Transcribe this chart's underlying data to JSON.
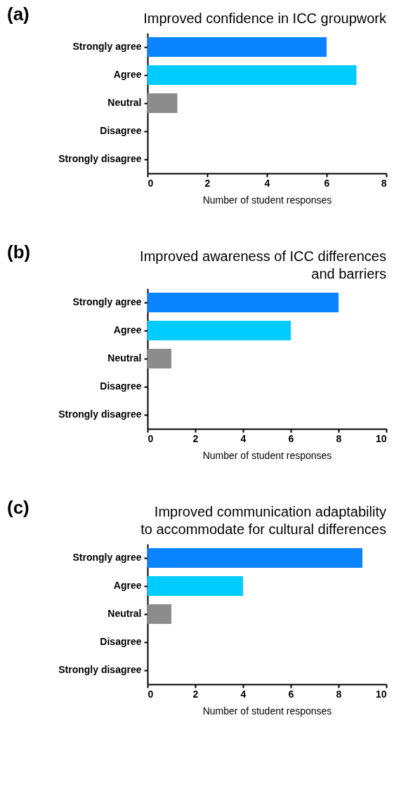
{
  "chart_data": [
    {
      "type": "bar",
      "orientation": "horizontal",
      "title": "Improved confidence in ICC groupwork",
      "annotations": [
        "(a)"
      ],
      "xlabel": "Number of student responses",
      "categories": [
        "Strongly agree",
        "Agree",
        "Neutral",
        "Disagree",
        "Strongly disagree"
      ],
      "values": [
        6,
        7,
        1,
        0,
        0
      ],
      "colors": [
        "#0a84ff",
        "#00ccff",
        "#8c8c8c",
        "#8c8c8c",
        "#8c8c8c"
      ],
      "xlim": [
        0,
        8
      ],
      "xticks": [
        0,
        2,
        4,
        6,
        8
      ],
      "grid": false
    },
    {
      "type": "bar",
      "orientation": "horizontal",
      "title": "Improved awareness of ICC differences\nand barriers",
      "annotations": [
        "(b)"
      ],
      "xlabel": "Number of student responses",
      "categories": [
        "Strongly agree",
        "Agree",
        "Neutral",
        "Disagree",
        "Strongly disagree"
      ],
      "values": [
        8,
        6,
        1,
        0,
        0
      ],
      "colors": [
        "#0a84ff",
        "#00ccff",
        "#8c8c8c",
        "#8c8c8c",
        "#8c8c8c"
      ],
      "xlim": [
        0,
        10
      ],
      "xticks": [
        0,
        2,
        4,
        6,
        8,
        10
      ],
      "grid": false
    },
    {
      "type": "bar",
      "orientation": "horizontal",
      "title": "Improved communication adaptability\nto accommodate for cultural differences",
      "annotations": [
        "(c)"
      ],
      "xlabel": "Number of student responses",
      "categories": [
        "Strongly agree",
        "Agree",
        "Neutral",
        "Disagree",
        "Strongly disagree"
      ],
      "values": [
        9,
        4,
        1,
        0,
        0
      ],
      "colors": [
        "#0a84ff",
        "#00ccff",
        "#8c8c8c",
        "#8c8c8c",
        "#8c8c8c"
      ],
      "xlim": [
        0,
        10
      ],
      "xticks": [
        0,
        2,
        4,
        6,
        8,
        10
      ],
      "grid": false
    }
  ]
}
